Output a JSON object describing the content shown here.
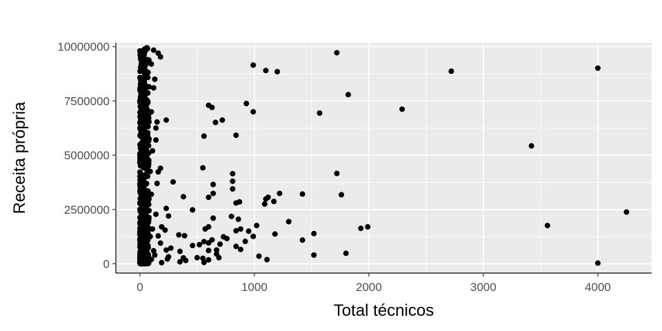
{
  "chart_data": {
    "type": "scatter",
    "title": "",
    "xlabel": "Total técnicos",
    "ylabel": "Receita própria",
    "xlim": [
      -210,
      4470
    ],
    "ylim": [
      -430000,
      10180000
    ],
    "x_ticks": [
      0,
      1000,
      2000,
      3000,
      4000
    ],
    "y_ticks": [
      0,
      2500000,
      5000000,
      7500000,
      10000000
    ],
    "x_tick_labels": [
      "0",
      "1000",
      "2000",
      "3000",
      "4000"
    ],
    "y_tick_labels": [
      "0",
      "2500000",
      "5000000",
      "7500000",
      "10000000"
    ],
    "grid": true,
    "panel_color": "#ebebeb",
    "grid_color": "#ffffff",
    "point_color": "#000000",
    "legend": "none",
    "points": [
      [
        1720,
        9720000
      ],
      [
        120,
        9840000
      ],
      [
        160,
        9700000
      ],
      [
        180,
        9530000
      ],
      [
        990,
        9150000
      ],
      [
        1100,
        8900000
      ],
      [
        1200,
        8850000
      ],
      [
        2720,
        8870000
      ],
      [
        4000,
        9010000
      ],
      [
        130,
        8500000
      ],
      [
        120,
        8100000
      ],
      [
        1820,
        7790000
      ],
      [
        930,
        7380000
      ],
      [
        600,
        7300000
      ],
      [
        630,
        7200000
      ],
      [
        2290,
        7120000
      ],
      [
        990,
        7000000
      ],
      [
        1570,
        6940000
      ],
      [
        720,
        6620000
      ],
      [
        230,
        6620000
      ],
      [
        660,
        6510000
      ],
      [
        150,
        6530000
      ],
      [
        140,
        6250000
      ],
      [
        840,
        5920000
      ],
      [
        560,
        5880000
      ],
      [
        140,
        5700000
      ],
      [
        3420,
        5430000
      ],
      [
        180,
        4400000
      ],
      [
        550,
        4420000
      ],
      [
        160,
        4230000
      ],
      [
        1720,
        4160000
      ],
      [
        810,
        4150000
      ],
      [
        810,
        3800000
      ],
      [
        290,
        3770000
      ],
      [
        640,
        3650000
      ],
      [
        810,
        3450000
      ],
      [
        640,
        3240000
      ],
      [
        1220,
        3240000
      ],
      [
        1420,
        3210000
      ],
      [
        1760,
        3180000
      ],
      [
        380,
        3090000
      ],
      [
        600,
        3060000
      ],
      [
        1120,
        3060000
      ],
      [
        1100,
        2980000
      ],
      [
        1170,
        2870000
      ],
      [
        870,
        2850000
      ],
      [
        840,
        2800000
      ],
      [
        1090,
        2750000
      ],
      [
        230,
        2550000
      ],
      [
        460,
        2480000
      ],
      [
        4250,
        2380000
      ],
      [
        140,
        2280000
      ],
      [
        250,
        2200000
      ],
      [
        800,
        2180000
      ],
      [
        640,
        2100000
      ],
      [
        860,
        2050000
      ],
      [
        1300,
        1940000
      ],
      [
        3560,
        1760000
      ],
      [
        1990,
        1700000
      ],
      [
        1930,
        1630000
      ],
      [
        190,
        1700000
      ],
      [
        600,
        1700000
      ],
      [
        570,
        1600000
      ],
      [
        1020,
        1760000
      ],
      [
        880,
        1600000
      ],
      [
        220,
        1550000
      ],
      [
        840,
        1520000
      ],
      [
        950,
        1500000
      ],
      [
        1520,
        1390000
      ],
      [
        1180,
        1370000
      ],
      [
        340,
        1330000
      ],
      [
        390,
        1290000
      ],
      [
        730,
        1240000
      ],
      [
        990,
        1260000
      ],
      [
        760,
        1160000
      ],
      [
        630,
        1100000
      ],
      [
        1420,
        1090000
      ],
      [
        920,
        1030000
      ],
      [
        560,
        1020000
      ],
      [
        600,
        960000
      ],
      [
        700,
        900000
      ],
      [
        460,
        840000
      ],
      [
        520,
        880000
      ],
      [
        840,
        800000
      ],
      [
        270,
        720000
      ],
      [
        230,
        630000
      ],
      [
        670,
        630000
      ],
      [
        880,
        660000
      ],
      [
        600,
        610000
      ],
      [
        350,
        570000
      ],
      [
        1800,
        480000
      ],
      [
        670,
        450000
      ],
      [
        1520,
        400000
      ],
      [
        1040,
        350000
      ],
      [
        690,
        280000
      ],
      [
        380,
        270000
      ],
      [
        550,
        250000
      ],
      [
        240,
        220000
      ],
      [
        1110,
        190000
      ],
      [
        600,
        180000
      ],
      [
        350,
        90000
      ],
      [
        190,
        50000
      ],
      [
        4000,
        30000
      ],
      [
        250,
        320000
      ],
      [
        130,
        400000
      ],
      [
        160,
        1280000
      ],
      [
        180,
        950000
      ],
      [
        400,
        150000
      ],
      [
        500,
        280000
      ],
      [
        560,
        60000
      ],
      [
        150,
        3700000
      ],
      [
        60,
        9950000
      ],
      [
        40,
        9800000
      ],
      [
        10,
        9650000
      ],
      [
        70,
        9400000
      ],
      [
        20,
        9100000
      ],
      [
        50,
        8800000
      ],
      [
        30,
        8450000
      ],
      [
        80,
        8150000
      ],
      [
        10,
        7850000
      ],
      [
        60,
        7550000
      ],
      [
        30,
        7250000
      ],
      [
        70,
        6950000
      ],
      [
        20,
        6650000
      ],
      [
        50,
        6350000
      ],
      [
        10,
        6050000
      ],
      [
        80,
        5750000
      ],
      [
        40,
        5450000
      ],
      [
        20,
        5150000
      ],
      [
        60,
        4850000
      ],
      [
        30,
        4550000
      ],
      [
        90,
        4250000
      ],
      [
        10,
        3950000
      ],
      [
        50,
        3650000
      ],
      [
        70,
        3350000
      ],
      [
        20,
        3050000
      ],
      [
        40,
        2750000
      ],
      [
        80,
        2450000
      ],
      [
        10,
        2150000
      ],
      [
        60,
        1850000
      ],
      [
        30,
        1550000
      ],
      [
        90,
        1250000
      ],
      [
        50,
        950000
      ],
      [
        20,
        650000
      ],
      [
        70,
        350000
      ],
      [
        40,
        50000
      ],
      [
        100,
        9200000
      ],
      [
        100,
        7000000
      ],
      [
        110,
        5200000
      ],
      [
        100,
        3200000
      ],
      [
        110,
        1600000
      ],
      [
        120,
        600000
      ],
      [
        100,
        200000
      ],
      [
        0,
        100000
      ],
      [
        0,
        2500000
      ],
      [
        0,
        5000000
      ],
      [
        0,
        7500000
      ],
      [
        0,
        9800000
      ]
    ],
    "dense_band": {
      "x_range": [
        0,
        80
      ],
      "y_range": [
        0,
        9950000
      ],
      "count": 520
    }
  }
}
